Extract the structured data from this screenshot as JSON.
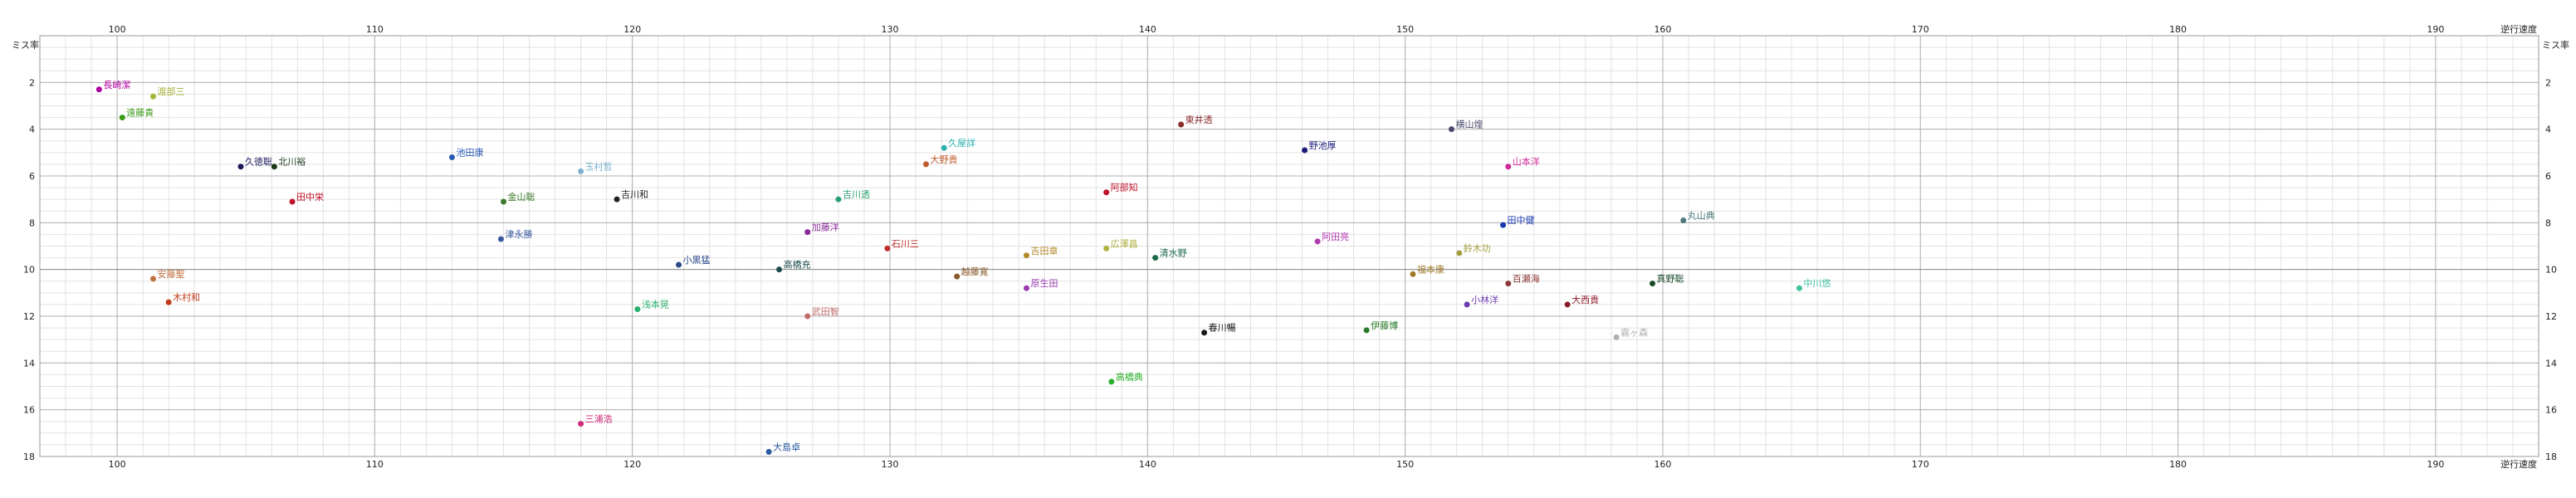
{
  "chart_data": {
    "type": "scatter",
    "xlabel": "逆行速度",
    "ylabel": "ミス率",
    "xlim": [
      97,
      194
    ],
    "ylim": [
      18,
      0
    ],
    "x_ticks": [
      100,
      110,
      120,
      130,
      140,
      150,
      160,
      170,
      180,
      190
    ],
    "y_ticks": [
      2,
      4,
      6,
      8,
      10,
      12,
      14,
      16,
      18
    ],
    "grid": true,
    "points": [
      {
        "label": "長崎潔",
        "x": 99.3,
        "y": 2.3,
        "color": "#b000a0"
      },
      {
        "label": "渡部三",
        "x": 101.4,
        "y": 2.6,
        "color": "#a8b43a"
      },
      {
        "label": "遠藤貴",
        "x": 100.2,
        "y": 3.5,
        "color": "#3a9a18"
      },
      {
        "label": "久徳聡",
        "x": 104.8,
        "y": 5.6,
        "color": "#1a1a5a"
      },
      {
        "label": "北川裕",
        "x": 106.1,
        "y": 5.6,
        "color": "#1a3a1a"
      },
      {
        "label": "池田康",
        "x": 113.0,
        "y": 5.2,
        "color": "#2a5ab4"
      },
      {
        "label": "玉村哲",
        "x": 118.0,
        "y": 5.8,
        "color": "#7ab0d0"
      },
      {
        "label": "田中栄",
        "x": 106.8,
        "y": 7.1,
        "color": "#c0102a"
      },
      {
        "label": "金山聡",
        "x": 115.0,
        "y": 7.1,
        "color": "#3a7a2a"
      },
      {
        "label": "吉川和",
        "x": 119.4,
        "y": 7.0,
        "color": "#222222"
      },
      {
        "label": "津永勝",
        "x": 114.9,
        "y": 8.7,
        "color": "#3a5aa0"
      },
      {
        "label": "小黒猛",
        "x": 121.8,
        "y": 9.8,
        "color": "#2a4a8a"
      },
      {
        "label": "安藤聖",
        "x": 101.4,
        "y": 10.4,
        "color": "#c07040"
      },
      {
        "label": "木村和",
        "x": 102.0,
        "y": 11.4,
        "color": "#c03a1a"
      },
      {
        "label": "浅本晃",
        "x": 120.2,
        "y": 11.7,
        "color": "#2ab070"
      },
      {
        "label": "三浦浩",
        "x": 118.0,
        "y": 16.6,
        "color": "#d02a7a"
      },
      {
        "label": "高橋充",
        "x": 125.7,
        "y": 10.0,
        "color": "#1a4a4a"
      },
      {
        "label": "大島卓",
        "x": 125.3,
        "y": 17.8,
        "color": "#2a5aa0"
      },
      {
        "label": "武田智",
        "x": 126.8,
        "y": 12.0,
        "color": "#c06a6a"
      },
      {
        "label": "加藤洋",
        "x": 126.8,
        "y": 8.4,
        "color": "#8a2a9a"
      },
      {
        "label": "吉川透",
        "x": 128.0,
        "y": 7.0,
        "color": "#2aa070"
      },
      {
        "label": "石川三",
        "x": 129.9,
        "y": 9.1,
        "color": "#c02a2a"
      },
      {
        "label": "大野貴",
        "x": 131.4,
        "y": 5.5,
        "color": "#c05a2a"
      },
      {
        "label": "久屋詳",
        "x": 132.1,
        "y": 4.8,
        "color": "#2ab0b0"
      },
      {
        "label": "越藤寛",
        "x": 132.6,
        "y": 10.3,
        "color": "#8a5a2a"
      },
      {
        "label": "吉田章",
        "x": 135.3,
        "y": 9.4,
        "color": "#b08a2a"
      },
      {
        "label": "原生田",
        "x": 135.3,
        "y": 10.8,
        "color": "#9a3ab0"
      },
      {
        "label": "阿部知",
        "x": 138.4,
        "y": 6.7,
        "color": "#c0102a"
      },
      {
        "label": "広澤昌",
        "x": 138.4,
        "y": 9.1,
        "color": "#b0b040"
      },
      {
        "label": "清水野",
        "x": 140.3,
        "y": 9.5,
        "color": "#1a6a4a"
      },
      {
        "label": "高橋典",
        "x": 138.6,
        "y": 14.8,
        "color": "#2ab02a"
      },
      {
        "label": "東井透",
        "x": 141.3,
        "y": 3.8,
        "color": "#8a2a2a"
      },
      {
        "label": "春川暢",
        "x": 142.2,
        "y": 12.7,
        "color": "#1a1a1a"
      },
      {
        "label": "野池厚",
        "x": 146.1,
        "y": 4.9,
        "color": "#1a1a7a"
      },
      {
        "label": "阿田亮",
        "x": 146.6,
        "y": 8.8,
        "color": "#b03ab0"
      },
      {
        "label": "伊藤博",
        "x": 148.5,
        "y": 12.6,
        "color": "#2a7a2a"
      },
      {
        "label": "横山煌",
        "x": 151.8,
        "y": 4.0,
        "color": "#4a4a6a"
      },
      {
        "label": "福本康",
        "x": 150.3,
        "y": 10.2,
        "color": "#a07a2a"
      },
      {
        "label": "鈴木功",
        "x": 152.1,
        "y": 9.3,
        "color": "#a0a040"
      },
      {
        "label": "小林洋",
        "x": 152.4,
        "y": 11.5,
        "color": "#6a3ab0"
      },
      {
        "label": "山本洋",
        "x": 154.0,
        "y": 5.6,
        "color": "#d02a9a"
      },
      {
        "label": "田中健",
        "x": 153.8,
        "y": 8.1,
        "color": "#1a3ab0"
      },
      {
        "label": "百瀬海",
        "x": 154.0,
        "y": 10.6,
        "color": "#8a3a3a"
      },
      {
        "label": "大西貴",
        "x": 156.3,
        "y": 11.5,
        "color": "#8a1a2a"
      },
      {
        "label": "霧ヶ森",
        "x": 158.2,
        "y": 12.9,
        "color": "#b0b0b0"
      },
      {
        "label": "丸山典",
        "x": 160.8,
        "y": 7.9,
        "color": "#4a7a7a"
      },
      {
        "label": "真野聡",
        "x": 159.6,
        "y": 10.6,
        "color": "#1a4a2a"
      },
      {
        "label": "中川悠",
        "x": 165.3,
        "y": 10.8,
        "color": "#40c0a0"
      }
    ]
  }
}
